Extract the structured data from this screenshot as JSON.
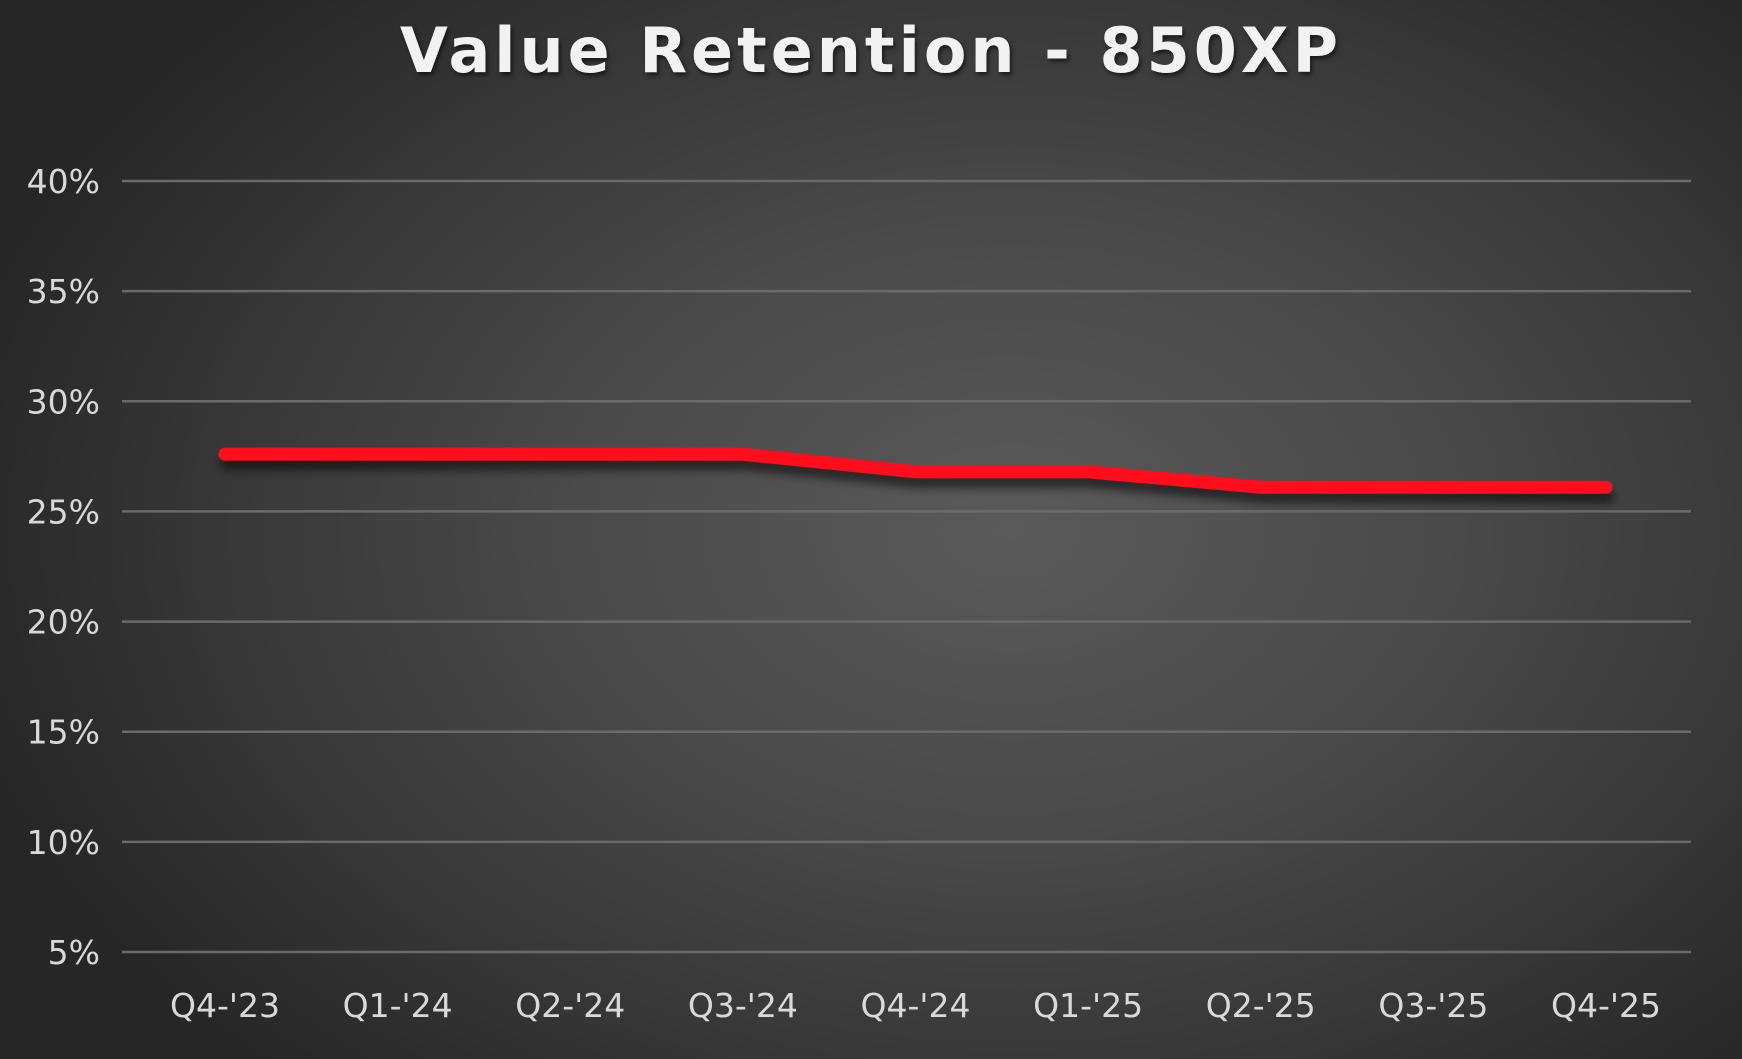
{
  "chart_data": {
    "type": "line",
    "title": "Value Retention - 850XP",
    "xlabel": "",
    "ylabel": "",
    "categories": [
      "Q4-'23",
      "Q1-'24",
      "Q2-'24",
      "Q3-'24",
      "Q4-'24",
      "Q1-'25",
      "Q2-'25",
      "Q3-'25",
      "Q4-'25"
    ],
    "series": [
      {
        "name": "850XP",
        "color": "#ff0a1e",
        "values": [
          27.6,
          27.6,
          27.6,
          27.6,
          26.8,
          26.8,
          26.1,
          26.1,
          26.1
        ]
      }
    ],
    "yticks": [
      "40%",
      "35%",
      "30%",
      "25%",
      "20%",
      "15%",
      "10%",
      "5%"
    ],
    "ytick_values": [
      40,
      35,
      30,
      25,
      20,
      15,
      10,
      5
    ],
    "ylim": [
      5,
      40
    ],
    "grid": true,
    "legend": "none"
  },
  "colors": {
    "line": "#ff0a1e",
    "gridline": "#6a6a6a",
    "tick_text": "#d9d9d9",
    "title_text": "#f2f2f2",
    "background_center": "#5a5a5a",
    "background_edge": "#262626"
  }
}
